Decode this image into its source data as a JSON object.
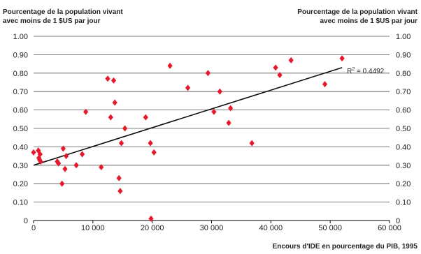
{
  "chart_data": {
    "type": "scatter",
    "ylabel_left": [
      "Pourcentage de la population vivant",
      "avec moins de 1 $US par jour"
    ],
    "ylabel_right": [
      "Pourcentage de la population vivant",
      "avec moins de 1 $US par jour"
    ],
    "xlabel": "Encours d'IDE en pourcentage du PIB, 1995",
    "xlim": [
      0,
      60000
    ],
    "ylim": [
      0,
      1.0
    ],
    "x_ticks": [
      0,
      10000,
      20000,
      30000,
      40000,
      50000,
      60000
    ],
    "x_tick_labels": [
      "0",
      "10 000",
      "20 000",
      "30 000",
      "40 000",
      "50 000",
      "60 000"
    ],
    "y_ticks": [
      0,
      0.1,
      0.2,
      0.3,
      0.4,
      0.5,
      0.6,
      0.7,
      0.8,
      0.9,
      1.0
    ],
    "y_tick_labels": [
      "0",
      "0.10",
      "0.20",
      "0.30",
      "0.40",
      "0.50",
      "0.60",
      "0.70",
      "0.80",
      "0.90",
      "1.00"
    ],
    "grid": "horizontal",
    "marker": "diamond",
    "marker_color": "#e8192c",
    "points": [
      {
        "x": 0,
        "y": 0.37
      },
      {
        "x": 800,
        "y": 0.38
      },
      {
        "x": 900,
        "y": 0.34
      },
      {
        "x": 1000,
        "y": 0.33
      },
      {
        "x": 1100,
        "y": 0.36
      },
      {
        "x": 1200,
        "y": 0.32
      },
      {
        "x": 4000,
        "y": 0.32
      },
      {
        "x": 4200,
        "y": 0.31
      },
      {
        "x": 4800,
        "y": 0.2
      },
      {
        "x": 5000,
        "y": 0.39
      },
      {
        "x": 5300,
        "y": 0.28
      },
      {
        "x": 5500,
        "y": 0.35
      },
      {
        "x": 7200,
        "y": 0.3
      },
      {
        "x": 8200,
        "y": 0.36
      },
      {
        "x": 8800,
        "y": 0.59
      },
      {
        "x": 11400,
        "y": 0.29
      },
      {
        "x": 12500,
        "y": 0.77
      },
      {
        "x": 13000,
        "y": 0.56
      },
      {
        "x": 13500,
        "y": 0.76
      },
      {
        "x": 13700,
        "y": 0.64
      },
      {
        "x": 14400,
        "y": 0.23
      },
      {
        "x": 14600,
        "y": 0.16
      },
      {
        "x": 14800,
        "y": 0.42
      },
      {
        "x": 15400,
        "y": 0.5
      },
      {
        "x": 18900,
        "y": 0.56
      },
      {
        "x": 19700,
        "y": 0.42
      },
      {
        "x": 19800,
        "y": 0.01
      },
      {
        "x": 20300,
        "y": 0.37
      },
      {
        "x": 23000,
        "y": 0.84
      },
      {
        "x": 26000,
        "y": 0.72
      },
      {
        "x": 29400,
        "y": 0.8
      },
      {
        "x": 30400,
        "y": 0.59
      },
      {
        "x": 31400,
        "y": 0.7
      },
      {
        "x": 32900,
        "y": 0.53
      },
      {
        "x": 33200,
        "y": 0.61
      },
      {
        "x": 36800,
        "y": 0.42
      },
      {
        "x": 40800,
        "y": 0.83
      },
      {
        "x": 41500,
        "y": 0.79
      },
      {
        "x": 43400,
        "y": 0.87
      },
      {
        "x": 49100,
        "y": 0.74
      },
      {
        "x": 52000,
        "y": 0.88
      }
    ],
    "trendline": {
      "x": [
        0,
        52000
      ],
      "y": [
        0.3,
        0.83
      ]
    },
    "annotation": {
      "base": "R",
      "sup": "2",
      "text": " = 0.4492"
    }
  }
}
